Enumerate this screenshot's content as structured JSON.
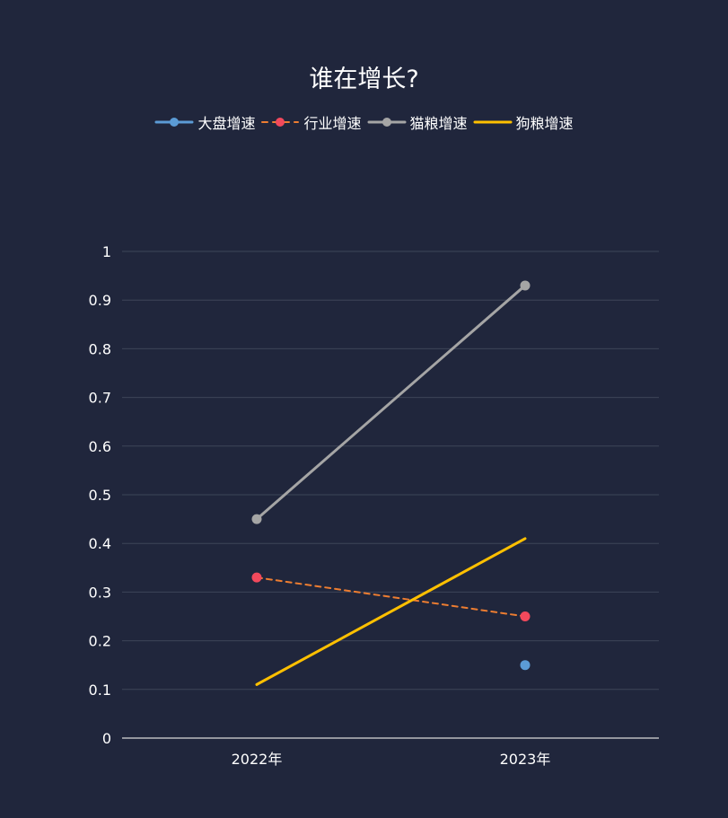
{
  "chart_data": {
    "type": "line",
    "title": "谁在增长?",
    "categories": [
      "2022年",
      "2023年"
    ],
    "ylim": [
      0,
      1
    ],
    "yticks": [
      "0",
      "0.1",
      "0.2",
      "0.3",
      "0.4",
      "0.5",
      "0.6",
      "0.7",
      "0.8",
      "0.9",
      "1"
    ],
    "grid": true,
    "legend_position": "top-center",
    "series": [
      {
        "name": "大盘增速",
        "values": [
          null,
          0.15
        ],
        "color": "#5b9bd5",
        "line_style": "solid",
        "marker": true
      },
      {
        "name": "行业增速",
        "values": [
          0.33,
          0.25
        ],
        "color": "#ed7d31",
        "marker_color": "#f2495c",
        "line_style": "dashed",
        "marker": true
      },
      {
        "name": "猫粮增速",
        "values": [
          0.45,
          0.93
        ],
        "color": "#a5a5a5",
        "line_style": "solid",
        "marker": true
      },
      {
        "name": "狗粮增速",
        "values": [
          0.11,
          0.41
        ],
        "color": "#ffc000",
        "line_style": "solid",
        "marker": false
      }
    ]
  }
}
